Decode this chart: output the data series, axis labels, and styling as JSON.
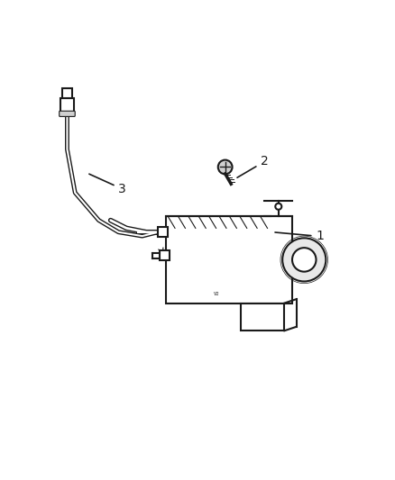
{
  "background_color": "#ffffff",
  "line_color": "#1a1a1a",
  "label_color": "#1a1a1a",
  "labels": {
    "1": [
      0.78,
      0.52
    ],
    "2": [
      0.62,
      0.32
    ],
    "3": [
      0.26,
      0.47
    ]
  },
  "figsize": [
    4.38,
    5.33
  ],
  "dpi": 100
}
